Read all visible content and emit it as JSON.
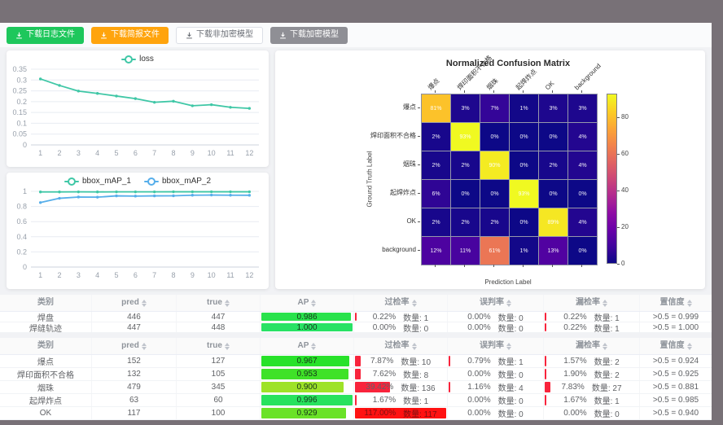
{
  "toolbar": {
    "buttons": [
      {
        "id": "download-log",
        "label": "下载日志文件",
        "variant": "success",
        "color": "#1ec75c"
      },
      {
        "id": "download-report",
        "label": "下载简报文件",
        "variant": "warning",
        "color": "#ffa40d"
      },
      {
        "id": "download-plain-model",
        "label": "下载非加密模型",
        "variant": "plain",
        "color": "#ffffff"
      },
      {
        "id": "download-encrypted-model",
        "label": "下载加密模型",
        "variant": "info",
        "color": "#8f8f95"
      }
    ]
  },
  "chart_data": [
    {
      "id": "loss",
      "type": "line",
      "legend": [
        "loss"
      ],
      "legend_position": "top",
      "x": [
        1,
        2,
        3,
        4,
        5,
        6,
        7,
        8,
        9,
        10,
        11,
        12
      ],
      "series": [
        {
          "name": "loss",
          "color": "#3fc7a6",
          "values": [
            0.305,
            0.275,
            0.249,
            0.238,
            0.226,
            0.214,
            0.197,
            0.202,
            0.181,
            0.186,
            0.174,
            0.169
          ]
        }
      ],
      "ylim": [
        0,
        0.35
      ],
      "yticks": [
        0,
        0.05,
        0.1,
        0.15,
        0.2,
        0.25,
        0.3,
        0.35
      ],
      "ytick_labels": [
        "0",
        "0.05",
        "0.1",
        "0.15",
        "0.2",
        "0.25",
        "0.3",
        "0.35"
      ],
      "grid": true
    },
    {
      "id": "bbox_map",
      "type": "line",
      "legend": [
        "bbox_mAP_1",
        "bbox_mAP_2"
      ],
      "legend_position": "top",
      "x": [
        1,
        2,
        3,
        4,
        5,
        6,
        7,
        8,
        9,
        10,
        11,
        12
      ],
      "series": [
        {
          "name": "bbox_mAP_1",
          "color": "#3fc7a6",
          "values": [
            0.992,
            0.992,
            0.993,
            0.992,
            0.993,
            0.993,
            0.993,
            0.994,
            0.994,
            0.994,
            0.994,
            0.994
          ]
        },
        {
          "name": "bbox_mAP_2",
          "color": "#56aeea",
          "values": [
            0.852,
            0.908,
            0.925,
            0.923,
            0.94,
            0.937,
            0.94,
            0.941,
            0.949,
            0.951,
            0.949,
            0.948
          ]
        }
      ],
      "ylim": [
        0,
        1
      ],
      "yticks": [
        0,
        0.2,
        0.4,
        0.6,
        0.8,
        1
      ],
      "ytick_labels": [
        "0",
        "0.2",
        "0.4",
        "0.6",
        "0.8",
        "1"
      ],
      "grid": true
    },
    {
      "id": "confusion_matrix",
      "type": "heatmap",
      "title": "Normalized Confusion Matrix",
      "xlabel": "Prediction Label",
      "ylabel": "Ground Truth Label",
      "labels": [
        "爆点",
        "焊印面积不合格",
        "烟珠",
        "起焊炸点",
        "OK",
        "background"
      ],
      "values_percent": [
        [
          81,
          3,
          7,
          1,
          3,
          3
        ],
        [
          2,
          93,
          0,
          0,
          0,
          4
        ],
        [
          2,
          2,
          90,
          0,
          2,
          4
        ],
        [
          6,
          0,
          0,
          93,
          0,
          0
        ],
        [
          2,
          2,
          2,
          0,
          89,
          4
        ],
        [
          12,
          11,
          61,
          1,
          13,
          0
        ]
      ],
      "colormap": "plasma",
      "vmax": 93,
      "colorbar_ticks": [
        0,
        20,
        40,
        60,
        80
      ]
    }
  ],
  "tables": {
    "columns": [
      {
        "label": "类别",
        "sortable": false
      },
      {
        "label": "pred",
        "sortable": true
      },
      {
        "label": "true",
        "sortable": true
      },
      {
        "label": "AP",
        "sortable": true
      },
      {
        "label": "过检率",
        "sortable": true
      },
      {
        "label": "误判率",
        "sortable": true
      },
      {
        "label": "漏检率",
        "sortable": true
      },
      {
        "label": "置信度",
        "sortable": true
      }
    ],
    "table1": {
      "rows": [
        {
          "class": "焊盘",
          "pred": "446",
          "true": "447",
          "ap": "0.986",
          "over": {
            "pct": "0.22%",
            "qty": "数量: 1",
            "bar": 0.22
          },
          "mis": {
            "pct": "0.00%",
            "qty": "数量: 0",
            "bar": 0
          },
          "miss": {
            "pct": "0.22%",
            "qty": "数量: 1",
            "bar": 0.22
          },
          "conf": ">0.5 = 0.999"
        },
        {
          "class": "焊缝轨迹",
          "pred": "447",
          "true": "448",
          "ap": "1.000",
          "over": {
            "pct": "0.00%",
            "qty": "数量: 0",
            "bar": 0
          },
          "mis": {
            "pct": "0.00%",
            "qty": "数量: 0",
            "bar": 0
          },
          "miss": {
            "pct": "0.22%",
            "qty": "数量: 1",
            "bar": 0.22
          },
          "conf": ">0.5 = 1.000"
        }
      ]
    },
    "table2": {
      "rows": [
        {
          "class": "爆点",
          "pred": "152",
          "true": "127",
          "ap": "0.967",
          "over": {
            "pct": "7.87%",
            "qty": "数量: 10",
            "bar": 7.87
          },
          "mis": {
            "pct": "0.79%",
            "qty": "数量: 1",
            "bar": 0.79
          },
          "miss": {
            "pct": "1.57%",
            "qty": "数量: 2",
            "bar": 1.57
          },
          "conf": ">0.5 = 0.924"
        },
        {
          "class": "焊印面积不合格",
          "pred": "132",
          "true": "105",
          "ap": "0.953",
          "over": {
            "pct": "7.62%",
            "qty": "数量: 8",
            "bar": 7.62
          },
          "mis": {
            "pct": "0.00%",
            "qty": "数量: 0",
            "bar": 0
          },
          "miss": {
            "pct": "1.90%",
            "qty": "数量: 2",
            "bar": 1.9
          },
          "conf": ">0.5 = 0.925"
        },
        {
          "class": "烟珠",
          "pred": "479",
          "true": "345",
          "ap": "0.900",
          "over": {
            "pct": "39.42%",
            "qty": "数量: 136",
            "bar": 39.42
          },
          "mis": {
            "pct": "1.16%",
            "qty": "数量: 4",
            "bar": 1.16
          },
          "miss": {
            "pct": "7.83%",
            "qty": "数量: 27",
            "bar": 7.83
          },
          "conf": ">0.5 = 0.881"
        },
        {
          "class": "起焊炸点",
          "pred": "63",
          "true": "60",
          "ap": "0.996",
          "over": {
            "pct": "1.67%",
            "qty": "数量: 1",
            "bar": 1.67
          },
          "mis": {
            "pct": "0.00%",
            "qty": "数量: 0",
            "bar": 0
          },
          "miss": {
            "pct": "1.67%",
            "qty": "数量: 1",
            "bar": 1.67
          },
          "conf": ">0.5 = 0.985"
        },
        {
          "class": "OK",
          "pred": "117",
          "true": "100",
          "ap": "0.929",
          "over": {
            "pct": "117.00%",
            "qty": "数量: 117",
            "bar": 117
          },
          "mis": {
            "pct": "0.00%",
            "qty": "数量: 0",
            "bar": 0
          },
          "miss": {
            "pct": "0.00%",
            "qty": "数量: 0",
            "bar": 0
          },
          "conf": ">0.5 = 0.940"
        }
      ]
    }
  },
  "colors": {
    "series_teal": "#3fc7a6",
    "series_blue": "#56aeea",
    "rate_bar_red": "#f8243c",
    "full_red": "#ff1212",
    "btn_success": "#1ec75c",
    "btn_warning": "#ffa40d",
    "btn_info": "#8f8f95"
  }
}
